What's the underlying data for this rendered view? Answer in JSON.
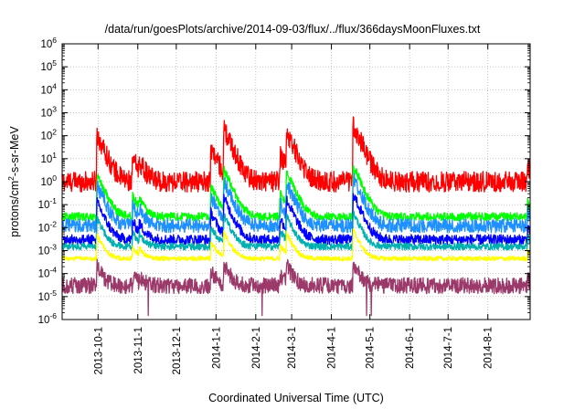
{
  "chart_data": {
    "type": "line",
    "title": "/data/run/goesPlots/archive/2014-09-03/flux/../flux/366daysMoonFluxes.txt",
    "xlabel": "Coordinated Universal Time (UTC)",
    "ylabel": "protons/cm²-s-sr-MeV",
    "ylabel_parts": [
      "protons/cm",
      "2",
      "-s-sr-MeV"
    ],
    "yscale": "log",
    "ylim": [
      1e-06,
      1000000.0
    ],
    "xlim": [
      "2013-09-03",
      "2014-09-03"
    ],
    "grid": true,
    "xticks": [
      "2013-10-1",
      "2013-11-1",
      "2013-12-1",
      "2014-1-1",
      "2014-2-1",
      "2014-3-1",
      "2014-4-1",
      "2014-5-1",
      "2014-6-1",
      "2014-7-1",
      "2014-8-1"
    ],
    "yticks": [
      {
        "value": 1e-06,
        "base": "10",
        "exp": "-6"
      },
      {
        "value": 1e-05,
        "base": "10",
        "exp": "-5"
      },
      {
        "value": 0.0001,
        "base": "10",
        "exp": "-4"
      },
      {
        "value": 0.001,
        "base": "10",
        "exp": "-3"
      },
      {
        "value": 0.01,
        "base": "10",
        "exp": "-2"
      },
      {
        "value": 0.1,
        "base": "10",
        "exp": "-1"
      },
      {
        "value": 1,
        "base": "10",
        "exp": "0"
      },
      {
        "value": 10,
        "base": "10",
        "exp": "1"
      },
      {
        "value": 100,
        "base": "10",
        "exp": "2"
      },
      {
        "value": 1000,
        "base": "10",
        "exp": "3"
      },
      {
        "value": 10000,
        "base": "10",
        "exp": "4"
      },
      {
        "value": 100000,
        "base": "10",
        "exp": "5"
      },
      {
        "value": 1000000,
        "base": "10",
        "exp": "6"
      }
    ],
    "events": [
      {
        "date": "2013-09-30",
        "peak_factor": 120
      },
      {
        "date": "2013-10-28",
        "peak_factor": 10
      },
      {
        "date": "2013-11-02",
        "peak_factor": 6
      },
      {
        "date": "2013-12-28",
        "peak_factor": 30
      },
      {
        "date": "2014-01-07",
        "peak_factor": 200
      },
      {
        "date": "2014-02-20",
        "peak_factor": 15
      },
      {
        "date": "2014-02-25",
        "peak_factor": 150
      },
      {
        "date": "2014-04-18",
        "peak_factor": 300
      },
      {
        "date": "2014-09-01",
        "peak_factor": 5
      }
    ],
    "series": [
      {
        "color": "#ff0000",
        "baseline": 1.0,
        "noise": 0.45,
        "response": 1.0
      },
      {
        "color": "#00ff00",
        "baseline": 0.03,
        "noise": 0.18,
        "response": 0.9
      },
      {
        "color": "#1e90ff",
        "baseline": 0.012,
        "noise": 0.3,
        "response": 0.85
      },
      {
        "color": "#0000ff",
        "baseline": 0.003,
        "noise": 0.22,
        "response": 0.8
      },
      {
        "color": "#00b0b0",
        "baseline": 0.0015,
        "noise": 0.15,
        "response": 0.6
      },
      {
        "color": "#ffff00",
        "baseline": 0.00045,
        "noise": 0.1,
        "response": 0.5
      },
      {
        "color": "#9b3a6a",
        "baseline": 3e-05,
        "noise": 0.35,
        "response": 0.4
      }
    ]
  }
}
